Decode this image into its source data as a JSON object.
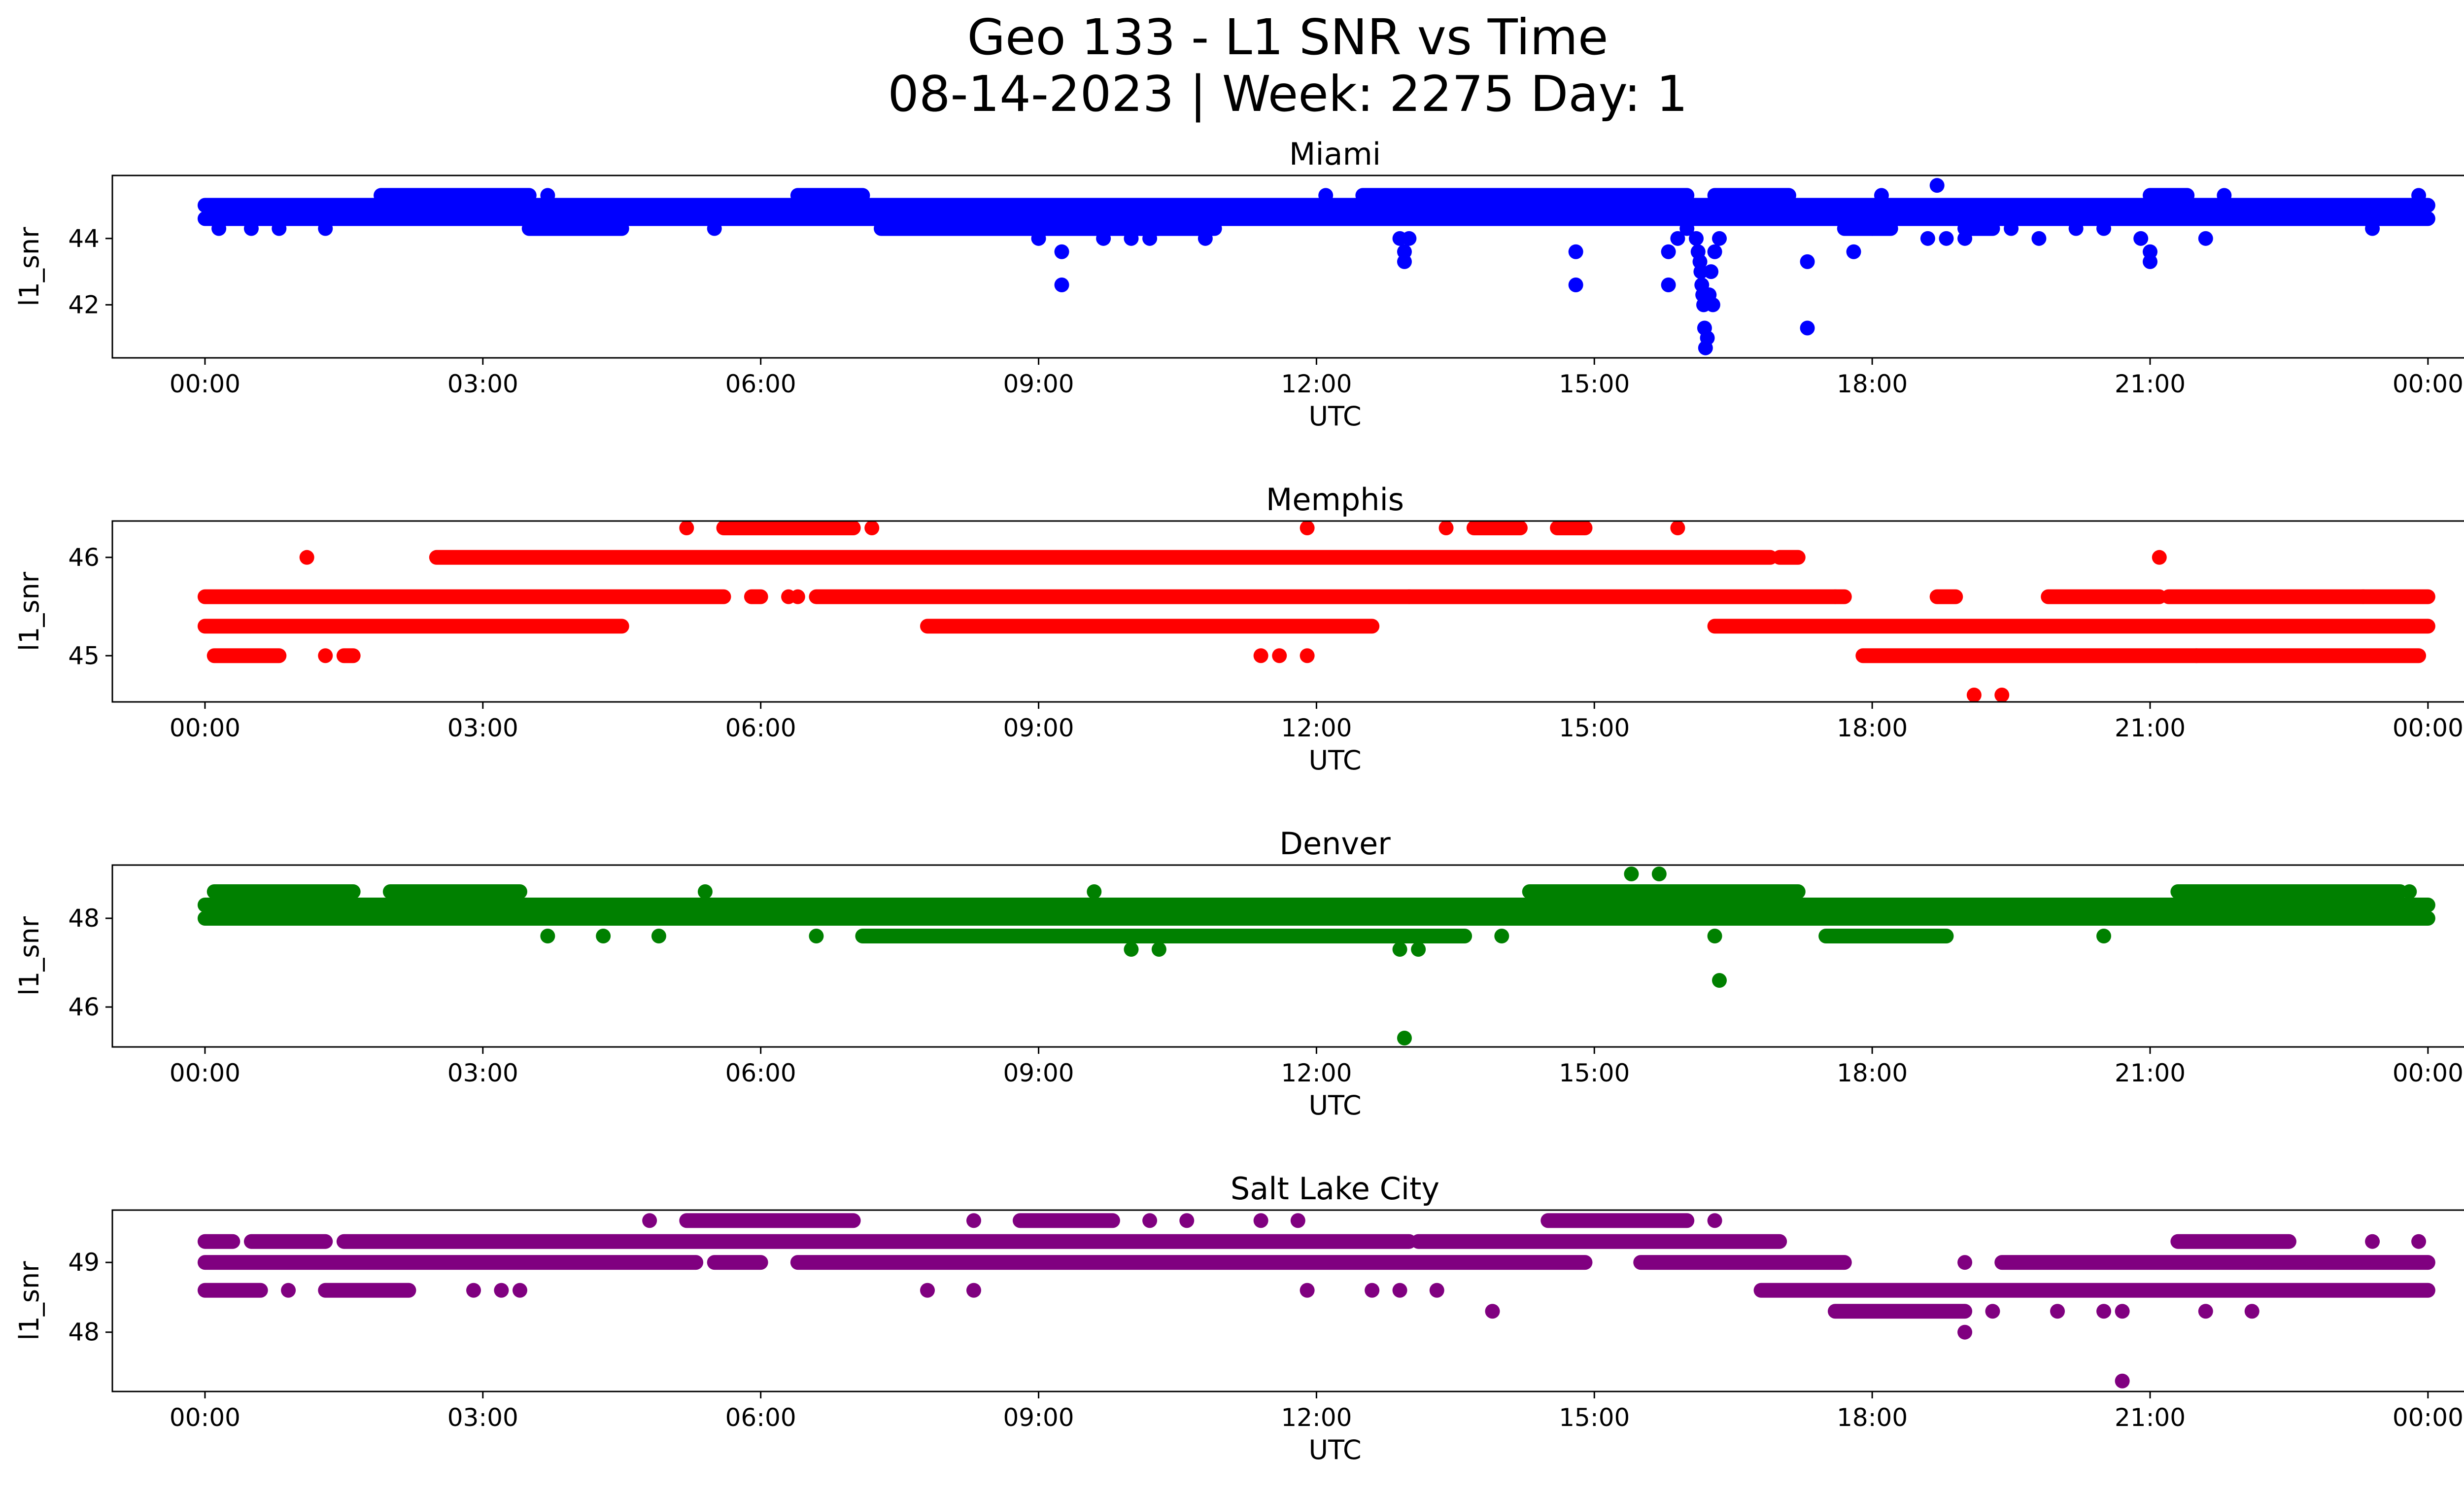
{
  "figure": {
    "title_line1": "Geo 133 - L1 SNR vs Time",
    "title_line2": "08-14-2023 | Week: 2275 Day: 1"
  },
  "chart_data": [
    {
      "type": "scatter",
      "title": "Miami",
      "xlabel": "UTC",
      "ylabel": "l1_snr",
      "color": "#0000ff",
      "xlim_hours": [
        -1,
        25.4
      ],
      "ylim": [
        40.4,
        45.9
      ],
      "xticks": [
        "00:00",
        "03:00",
        "06:00",
        "09:00",
        "12:00",
        "15:00",
        "18:00",
        "21:00",
        "00:00"
      ],
      "yticks": [
        42,
        44
      ],
      "levels": [
        {
          "y": 45.0,
          "ranges": [
            [
              0.0,
              24.0
            ]
          ]
        },
        {
          "y": 44.6,
          "ranges": [
            [
              0.0,
              24.0
            ]
          ]
        },
        {
          "y": 45.3,
          "ranges": [
            [
              1.9,
              3.5
            ],
            [
              6.4,
              7.1
            ],
            [
              12.5,
              16.0
            ],
            [
              16.3,
              17.1
            ],
            [
              21.0,
              21.4
            ]
          ]
        },
        {
          "y": 44.3,
          "ranges": [
            [
              3.5,
              4.5
            ],
            [
              7.3,
              10.9
            ],
            [
              10.1,
              10.3
            ],
            [
              17.7,
              18.2
            ],
            [
              19.0,
              19.3
            ]
          ]
        }
      ],
      "points": [
        [
          0.15,
          44.3
        ],
        [
          0.5,
          44.3
        ],
        [
          0.8,
          44.3
        ],
        [
          1.3,
          44.3
        ],
        [
          5.5,
          44.3
        ],
        [
          3.7,
          45.3
        ],
        [
          9.0,
          44.0
        ],
        [
          9.2,
          45.0
        ],
        [
          9.25,
          43.6
        ],
        [
          9.25,
          42.6
        ],
        [
          9.7,
          44.0
        ],
        [
          10.0,
          44.0
        ],
        [
          10.2,
          44.0
        ],
        [
          10.8,
          44.0
        ],
        [
          12.1,
          45.3
        ],
        [
          12.9,
          44.0
        ],
        [
          12.95,
          43.6
        ],
        [
          12.95,
          43.3
        ],
        [
          13.0,
          44.0
        ],
        [
          14.8,
          43.6
        ],
        [
          14.8,
          42.6
        ],
        [
          15.8,
          43.6
        ],
        [
          15.8,
          42.6
        ],
        [
          15.9,
          44.0
        ],
        [
          16.0,
          44.3
        ],
        [
          16.1,
          44.0
        ],
        [
          16.12,
          43.6
        ],
        [
          16.14,
          43.3
        ],
        [
          16.15,
          43.0
        ],
        [
          16.16,
          42.6
        ],
        [
          16.17,
          42.3
        ],
        [
          16.18,
          42.0
        ],
        [
          16.19,
          41.3
        ],
        [
          16.2,
          40.7
        ],
        [
          16.22,
          41.0
        ],
        [
          16.24,
          42.3
        ],
        [
          16.26,
          43.0
        ],
        [
          16.28,
          42.0
        ],
        [
          16.3,
          43.6
        ],
        [
          16.35,
          44.0
        ],
        [
          17.3,
          43.3
        ],
        [
          17.3,
          41.3
        ],
        [
          17.8,
          43.6
        ],
        [
          18.0,
          44.3
        ],
        [
          18.1,
          45.3
        ],
        [
          18.6,
          44.0
        ],
        [
          18.7,
          45.6
        ],
        [
          18.8,
          44.0
        ],
        [
          19.0,
          44.0
        ],
        [
          19.5,
          44.3
        ],
        [
          19.8,
          44.0
        ],
        [
          20.2,
          44.3
        ],
        [
          20.5,
          44.3
        ],
        [
          20.9,
          44.0
        ],
        [
          21.0,
          43.6
        ],
        [
          21.0,
          43.3
        ],
        [
          21.6,
          44.0
        ],
        [
          21.8,
          45.3
        ],
        [
          23.4,
          44.3
        ],
        [
          23.9,
          45.3
        ]
      ]
    },
    {
      "type": "scatter",
      "title": "Memphis",
      "xlabel": "UTC",
      "ylabel": "l1_snr",
      "color": "#ff0000",
      "xlim_hours": [
        -1,
        25.4
      ],
      "ylim": [
        44.53,
        46.37
      ],
      "xticks": [
        "00:00",
        "03:00",
        "06:00",
        "09:00",
        "12:00",
        "15:00",
        "18:00",
        "21:00",
        "00:00"
      ],
      "yticks": [
        45,
        46
      ],
      "levels": [
        {
          "y": 45.6,
          "ranges": [
            [
              0.0,
              5.6
            ],
            [
              5.9,
              6.0
            ],
            [
              6.6,
              17.7
            ],
            [
              18.7,
              18.9
            ],
            [
              19.9,
              21.1
            ],
            [
              21.2,
              24.0
            ]
          ]
        },
        {
          "y": 45.3,
          "ranges": [
            [
              0.0,
              4.5
            ],
            [
              7.8,
              12.6
            ],
            [
              16.3,
              24.0
            ]
          ]
        },
        {
          "y": 46.0,
          "ranges": [
            [
              2.5,
              16.9
            ],
            [
              17.0,
              17.2
            ]
          ]
        },
        {
          "y": 45.0,
          "ranges": [
            [
              0.1,
              0.8
            ],
            [
              1.5,
              1.6
            ],
            [
              17.9,
              23.9
            ]
          ]
        },
        {
          "y": 46.3,
          "ranges": [
            [
              5.6,
              7.0
            ],
            [
              13.7,
              14.2
            ],
            [
              14.6,
              14.9
            ]
          ]
        }
      ],
      "points": [
        [
          1.1,
          46.0
        ],
        [
          1.3,
          45.0
        ],
        [
          5.2,
          46.3
        ],
        [
          6.4,
          45.6
        ],
        [
          6.3,
          45.6
        ],
        [
          7.2,
          46.3
        ],
        [
          11.4,
          45.0
        ],
        [
          11.6,
          45.0
        ],
        [
          11.9,
          45.0
        ],
        [
          11.9,
          46.3
        ],
        [
          13.4,
          46.3
        ],
        [
          13.0,
          45.6
        ],
        [
          15.9,
          46.3
        ],
        [
          17.6,
          45.6
        ],
        [
          19.1,
          44.6
        ],
        [
          19.4,
          44.6
        ],
        [
          21.1,
          46.0
        ],
        [
          21.5,
          45.0
        ],
        [
          23.3,
          45.6
        ]
      ]
    },
    {
      "type": "scatter",
      "title": "Denver",
      "xlabel": "UTC",
      "ylabel": "l1_snr",
      "color": "#008000",
      "xlim_hours": [
        -1,
        25.4
      ],
      "ylim": [
        45.1,
        49.2
      ],
      "xticks": [
        "00:00",
        "03:00",
        "06:00",
        "09:00",
        "12:00",
        "15:00",
        "18:00",
        "21:00",
        "00:00"
      ],
      "yticks": [
        46,
        48
      ],
      "levels": [
        {
          "y": 48.0,
          "ranges": [
            [
              0.0,
              3.2
            ],
            [
              3.2,
              24.0
            ]
          ]
        },
        {
          "y": 48.3,
          "ranges": [
            [
              0.0,
              24.0
            ]
          ]
        },
        {
          "y": 48.6,
          "ranges": [
            [
              0.1,
              1.6
            ],
            [
              2.0,
              3.4
            ],
            [
              14.3,
              17.2
            ],
            [
              21.3,
              23.7
            ]
          ]
        },
        {
          "y": 47.6,
          "ranges": [
            [
              7.1,
              13.6
            ],
            [
              17.5,
              18.8
            ]
          ]
        }
      ],
      "points": [
        [
          5.4,
          48.6
        ],
        [
          3.7,
          47.6
        ],
        [
          4.3,
          47.6
        ],
        [
          4.9,
          47.6
        ],
        [
          6.6,
          47.6
        ],
        [
          9.6,
          48.6
        ],
        [
          10.0,
          47.3
        ],
        [
          10.3,
          47.3
        ],
        [
          12.9,
          47.3
        ],
        [
          13.1,
          47.3
        ],
        [
          12.95,
          45.3
        ],
        [
          14.0,
          47.6
        ],
        [
          15.4,
          49.0
        ],
        [
          15.7,
          49.0
        ],
        [
          16.3,
          47.6
        ],
        [
          16.35,
          46.6
        ],
        [
          16.5,
          48.0
        ],
        [
          17.6,
          47.6
        ],
        [
          20.5,
          47.6
        ],
        [
          23.8,
          48.6
        ]
      ]
    },
    {
      "type": "scatter",
      "title": "Salt Lake City",
      "xlabel": "UTC",
      "ylabel": "l1_snr",
      "color": "#800080",
      "xlim_hours": [
        -1,
        25.4
      ],
      "ylim": [
        47.15,
        49.75
      ],
      "xticks": [
        "00:00",
        "03:00",
        "06:00",
        "09:00",
        "12:00",
        "15:00",
        "18:00",
        "21:00",
        "00:00"
      ],
      "yticks": [
        48,
        49
      ],
      "levels": [
        {
          "y": 49.0,
          "ranges": [
            [
              0.0,
              5.3
            ],
            [
              5.5,
              6.0
            ],
            [
              6.4,
              14.9
            ],
            [
              15.5,
              17.7
            ],
            [
              19.4,
              24.0
            ]
          ]
        },
        {
          "y": 49.3,
          "ranges": [
            [
              0.0,
              0.3
            ],
            [
              0.5,
              1.3
            ],
            [
              1.5,
              13.0
            ],
            [
              13.1,
              17.0
            ],
            [
              21.3,
              22.5
            ]
          ]
        },
        {
          "y": 48.6,
          "ranges": [
            [
              0.0,
              0.6
            ],
            [
              1.3,
              2.2
            ],
            [
              16.8,
              24.0
            ]
          ]
        },
        {
          "y": 49.6,
          "ranges": [
            [
              5.2,
              7.0
            ],
            [
              8.8,
              9.8
            ],
            [
              14.5,
              16.0
            ]
          ]
        },
        {
          "y": 48.3,
          "ranges": [
            [
              17.6,
              19.0
            ]
          ]
        }
      ],
      "points": [
        [
          0.9,
          48.6
        ],
        [
          2.9,
          48.6
        ],
        [
          3.2,
          48.6
        ],
        [
          3.4,
          48.6
        ],
        [
          4.8,
          49.6
        ],
        [
          7.8,
          48.6
        ],
        [
          8.3,
          48.6
        ],
        [
          8.3,
          49.6
        ],
        [
          10.2,
          49.6
        ],
        [
          10.6,
          49.6
        ],
        [
          11.4,
          49.6
        ],
        [
          11.8,
          49.6
        ],
        [
          11.9,
          48.6
        ],
        [
          12.6,
          48.6
        ],
        [
          12.9,
          48.6
        ],
        [
          13.3,
          48.6
        ],
        [
          13.9,
          48.3
        ],
        [
          16.3,
          49.6
        ],
        [
          19.0,
          48.0
        ],
        [
          19.3,
          48.3
        ],
        [
          19.0,
          49.0
        ],
        [
          20.0,
          48.3
        ],
        [
          20.5,
          48.3
        ],
        [
          20.7,
          48.3
        ],
        [
          20.7,
          47.3
        ],
        [
          21.6,
          48.3
        ],
        [
          22.1,
          48.3
        ],
        [
          23.4,
          49.3
        ],
        [
          23.9,
          49.3
        ]
      ]
    }
  ]
}
